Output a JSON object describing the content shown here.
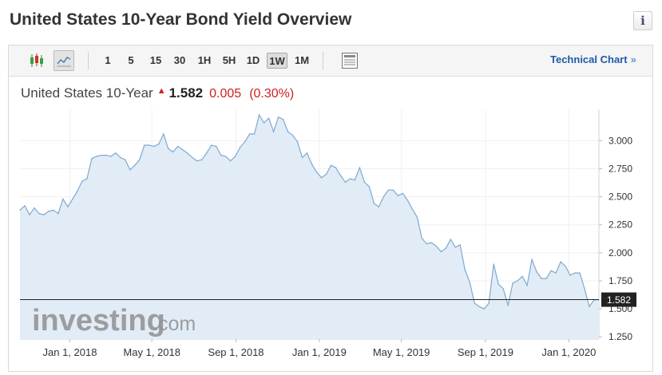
{
  "page": {
    "title": "United States 10-Year Bond Yield Overview",
    "info_icon": "info-icon",
    "info_glyph": "i"
  },
  "toolbar": {
    "chart_type_icons": [
      "candlestick-icon",
      "line-chart-icon"
    ],
    "active_chart_type": "line-chart-icon",
    "timeframes": [
      "1",
      "5",
      "15",
      "30",
      "1H",
      "5H",
      "1D",
      "1W",
      "1M"
    ],
    "active_timeframe": "1W",
    "table_icon": "table-view-icon",
    "technical_chart_label": "Technical Chart",
    "technical_chart_arrows": "»"
  },
  "quote": {
    "instrument": "United States 10-Year",
    "direction_icon": "price-up-arrow-icon",
    "last": "1.582",
    "change": "0.005",
    "change_percent": "(0.30%)"
  },
  "chart_data": {
    "type": "area",
    "x_tick_labels": [
      "Jan 1, 2018",
      "May 1, 2018",
      "Sep 1, 2018",
      "Jan 1, 2019",
      "May 1, 2019",
      "Sep 1, 2019",
      "Jan 1, 2020"
    ],
    "y_tick_labels": [
      "3.000",
      "2.750",
      "2.500",
      "2.250",
      "2.000",
      "1.750",
      "1.500",
      "1.250"
    ],
    "x_range": [
      "2017-10-20",
      "2020-02-14"
    ],
    "ylim": [
      1.23,
      3.28
    ],
    "grid": true,
    "current_value": 1.582,
    "current_value_label": "1.582",
    "watermark": "investing.com",
    "colors": {
      "line": "#7fa9d0",
      "fill": "#e1ecf7",
      "price_line": "#222222",
      "negative": "#d21e1e",
      "link": "#1e5aa8"
    },
    "series": [
      {
        "x": [
          "2017-10-20",
          "2017-10-27",
          "2017-11-03",
          "2017-11-10",
          "2017-11-17",
          "2017-11-24",
          "2017-12-01",
          "2017-12-08",
          "2017-12-15",
          "2017-12-22",
          "2017-12-29",
          "2018-01-05",
          "2018-01-12",
          "2018-01-19",
          "2018-01-26",
          "2018-02-02",
          "2018-02-09",
          "2018-02-16",
          "2018-02-23",
          "2018-03-02",
          "2018-03-09",
          "2018-03-16",
          "2018-03-23",
          "2018-03-30",
          "2018-04-06",
          "2018-04-13",
          "2018-04-20",
          "2018-04-27",
          "2018-05-04",
          "2018-05-11",
          "2018-05-18",
          "2018-05-25",
          "2018-06-01",
          "2018-06-08",
          "2018-06-15",
          "2018-06-22",
          "2018-06-29",
          "2018-07-06",
          "2018-07-13",
          "2018-07-20",
          "2018-07-27",
          "2018-08-03",
          "2018-08-10",
          "2018-08-17",
          "2018-08-24",
          "2018-08-31",
          "2018-09-07",
          "2018-09-14",
          "2018-09-21",
          "2018-09-28",
          "2018-10-05",
          "2018-10-12",
          "2018-10-19",
          "2018-10-26",
          "2018-11-02",
          "2018-11-09",
          "2018-11-16",
          "2018-11-23",
          "2018-11-30",
          "2018-12-07",
          "2018-12-14",
          "2018-12-21",
          "2018-12-28",
          "2019-01-04",
          "2019-01-11",
          "2019-01-18",
          "2019-01-25",
          "2019-02-01",
          "2019-02-08",
          "2019-02-15",
          "2019-02-22",
          "2019-03-01",
          "2019-03-08",
          "2019-03-15",
          "2019-03-22",
          "2019-03-29",
          "2019-04-05",
          "2019-04-12",
          "2019-04-19",
          "2019-04-26",
          "2019-05-03",
          "2019-05-10",
          "2019-05-17",
          "2019-05-24",
          "2019-05-31",
          "2019-06-07",
          "2019-06-14",
          "2019-06-21",
          "2019-06-28",
          "2019-07-05",
          "2019-07-12",
          "2019-07-19",
          "2019-07-26",
          "2019-08-02",
          "2019-08-09",
          "2019-08-16",
          "2019-08-23",
          "2019-08-30",
          "2019-09-06",
          "2019-09-13",
          "2019-09-20",
          "2019-09-27",
          "2019-10-04",
          "2019-10-11",
          "2019-10-18",
          "2019-10-25",
          "2019-11-01",
          "2019-11-08",
          "2019-11-15",
          "2019-11-22",
          "2019-11-29",
          "2019-12-06",
          "2019-12-13",
          "2019-12-20",
          "2019-12-27",
          "2020-01-03",
          "2020-01-10",
          "2020-01-17",
          "2020-01-24",
          "2020-01-31",
          "2020-02-07",
          "2020-02-14"
        ],
        "y": [
          2.38,
          2.42,
          2.34,
          2.4,
          2.35,
          2.34,
          2.37,
          2.38,
          2.35,
          2.48,
          2.41,
          2.48,
          2.55,
          2.64,
          2.66,
          2.84,
          2.86,
          2.87,
          2.87,
          2.86,
          2.89,
          2.85,
          2.83,
          2.74,
          2.78,
          2.83,
          2.96,
          2.96,
          2.95,
          2.97,
          3.06,
          2.93,
          2.9,
          2.95,
          2.92,
          2.89,
          2.85,
          2.82,
          2.83,
          2.89,
          2.96,
          2.95,
          2.87,
          2.86,
          2.82,
          2.86,
          2.94,
          2.99,
          3.06,
          3.06,
          3.23,
          3.16,
          3.2,
          3.08,
          3.21,
          3.19,
          3.08,
          3.05,
          2.99,
          2.85,
          2.89,
          2.79,
          2.72,
          2.67,
          2.7,
          2.78,
          2.76,
          2.69,
          2.63,
          2.66,
          2.65,
          2.76,
          2.63,
          2.59,
          2.44,
          2.41,
          2.5,
          2.56,
          2.56,
          2.51,
          2.53,
          2.47,
          2.39,
          2.32,
          2.13,
          2.08,
          2.09,
          2.06,
          2.01,
          2.04,
          2.12,
          2.05,
          2.07,
          1.85,
          1.74,
          1.55,
          1.52,
          1.5,
          1.55,
          1.9,
          1.72,
          1.68,
          1.53,
          1.73,
          1.75,
          1.79,
          1.71,
          1.94,
          1.83,
          1.77,
          1.77,
          1.84,
          1.82,
          1.92,
          1.88,
          1.8,
          1.82,
          1.82,
          1.68,
          1.52,
          1.58,
          1.58
        ]
      }
    ]
  }
}
